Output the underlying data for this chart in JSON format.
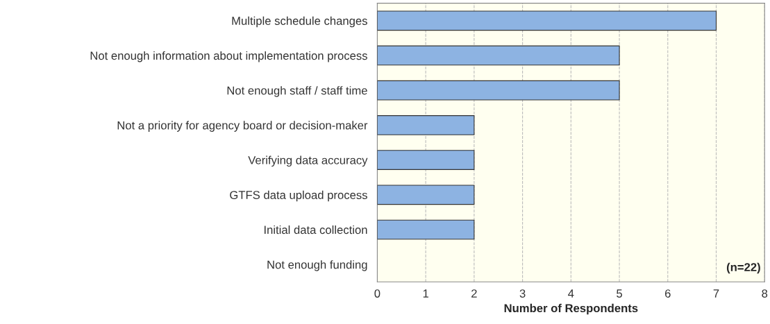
{
  "chart_data": {
    "type": "bar",
    "orientation": "horizontal",
    "categories": [
      "Multiple schedule changes",
      "Not enough information about implementation process",
      "Not enough staff / staff time",
      "Not a priority for agency board or decision-maker",
      "Verifying data accuracy",
      "GTFS data upload process",
      "Initial data collection",
      "Not enough funding"
    ],
    "values": [
      7,
      5,
      5,
      2,
      2,
      2,
      2,
      0
    ],
    "color": "#8db3e2",
    "xlim": [
      0,
      8
    ],
    "xticks": [
      0,
      1,
      2,
      3,
      4,
      5,
      6,
      7,
      8
    ],
    "xlabel": "Number of Respondents",
    "grid": "x",
    "line_style": "dashed",
    "annotations": [
      "(n=22)"
    ]
  }
}
